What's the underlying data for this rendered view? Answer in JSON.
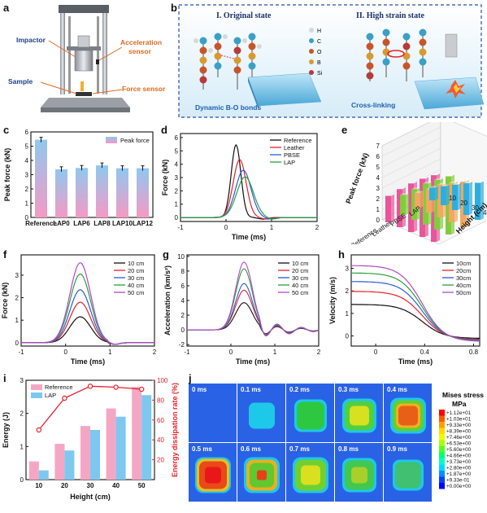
{
  "panels": {
    "a": "a",
    "b": "b",
    "c": "c",
    "d": "d",
    "e": "e",
    "f": "f",
    "g": "g",
    "h": "h",
    "i": "i",
    "j": "j"
  },
  "a": {
    "impactor": "Impactor",
    "accel": "Acceleration",
    "accel2": "sensor",
    "sample": "Sample",
    "force": "Force sensor"
  },
  "b": {
    "orig": "I. Original state",
    "high": "II. High strain state",
    "bonds": "Dynamic B-O bonds",
    "cross": "Cross-linking",
    "legend": [
      {
        "sym": "H",
        "color": "#d8d8d8"
      },
      {
        "sym": "C",
        "color": "#3aa0c8"
      },
      {
        "sym": "O",
        "color": "#c8552a"
      },
      {
        "sym": "B",
        "color": "#d89a30"
      },
      {
        "sym": "Si",
        "color": "#b83a3a"
      }
    ]
  },
  "c": {
    "ylabel": "Peak force (kN)",
    "legend": "Peak force"
  },
  "d": {
    "ylabel": "Force (kN)",
    "xlabel": "Time (ms)"
  },
  "e": {
    "zlabel": "Peak force (kN)",
    "height_label": "Height (cm)",
    "groups": [
      "Reference",
      "Leather",
      "PBSE",
      "LAP"
    ],
    "heights": [
      "10",
      "20",
      "30",
      "40",
      "50"
    ]
  },
  "f": {
    "ylabel": "Force (kN)",
    "xlabel": "Time (ms)"
  },
  "g": {
    "ylabel": "Acceleration (km/s²)",
    "xlabel": "Time (ms)"
  },
  "h": {
    "ylabel": "Velocity (m/s)",
    "xlabel": "Time (ms)"
  },
  "i": {
    "ylabel": "Energy (J)",
    "y2label": "Energy dissipation rate (%)",
    "xlabel": "Height (cm)"
  },
  "j": {
    "title1": "Mises stress",
    "title2": "MPa",
    "times": [
      "0 ms",
      "0.1 ms",
      "0.2 ms",
      "0.3 ms",
      "0.4 ms",
      "0.5 ms",
      "0.6 ms",
      "0.7 ms",
      "0.8 ms",
      "0.9 ms"
    ],
    "scale": [
      "+1.12e+01",
      "+1.03e+01",
      "+9.33e+00",
      "+8.39e+00",
      "+7.46e+00",
      "+6.53e+00",
      "+5.60e+00",
      "+4.66e+00",
      "+3.73e+00",
      "+2.80e+00",
      "+1.87e+00",
      "+9.33e-01",
      "+0.00e+00"
    ]
  },
  "chart_data": [
    {
      "panel": "c",
      "type": "bar",
      "categories": [
        "Reference",
        "LAP0",
        "LAP6",
        "LAP8",
        "LAP10",
        "LAP12"
      ],
      "values": [
        5.45,
        3.38,
        3.47,
        3.65,
        3.45,
        3.45
      ],
      "ylabel": "Peak force (kN)",
      "ylim": [
        0,
        6
      ],
      "yticks": [
        0,
        1,
        2,
        3,
        4,
        5,
        6
      ],
      "legend": [
        "Peak force"
      ]
    },
    {
      "panel": "d",
      "type": "line",
      "xlabel": "Time (ms)",
      "ylabel": "Force (kN)",
      "xlim": [
        -1,
        2
      ],
      "ylim": [
        -0.3,
        6.3
      ],
      "xticks": [
        -1,
        0,
        1,
        2
      ],
      "yticks": [
        0,
        1,
        2,
        3,
        4,
        5,
        6
      ],
      "series": [
        {
          "name": "Reference",
          "color": "#111111",
          "peak": 5.45,
          "tpeak": 0.22,
          "w": 0.15
        },
        {
          "name": "Leather",
          "color": "#e8202a",
          "peak": 4.35,
          "tpeak": 0.3,
          "w": 0.2
        },
        {
          "name": "PBSE",
          "color": "#2a5cd6",
          "peak": 3.55,
          "tpeak": 0.38,
          "w": 0.24
        },
        {
          "name": "LAP",
          "color": "#2aa040",
          "peak": 3.05,
          "tpeak": 0.42,
          "w": 0.26
        }
      ]
    },
    {
      "panel": "e",
      "type": "bar3d",
      "groups": [
        "Reference",
        "Leather",
        "PBSE",
        "LAP"
      ],
      "heights": [
        10,
        20,
        30,
        40,
        50
      ],
      "zlim": [
        0,
        7
      ],
      "zticks": [
        0,
        1,
        2,
        3,
        4,
        5,
        6,
        7
      ],
      "values": [
        [
          2.5,
          3.6,
          4.6,
          5.5,
          6.3
        ],
        [
          1.9,
          2.9,
          3.9,
          4.7,
          5.5
        ],
        [
          1.4,
          2.2,
          3.1,
          3.7,
          4.3
        ],
        [
          1.2,
          1.8,
          2.4,
          3.0,
          3.5
        ]
      ],
      "colors": [
        "#e8559a",
        "#82cc3c",
        "#f1a860",
        "#2eaee0"
      ]
    },
    {
      "panel": "f",
      "type": "line",
      "xlabel": "Time (ms)",
      "ylabel": "Force (kN)",
      "xlim": [
        -1,
        2
      ],
      "ylim": [
        -0.15,
        3.9
      ],
      "xticks": [
        -1,
        0,
        1,
        2
      ],
      "yticks": [
        0,
        1,
        2,
        3
      ],
      "series": [
        {
          "name": "10 cm",
          "color": "#111111",
          "peak": 1.15
        },
        {
          "name": "20 cm",
          "color": "#e8202a",
          "peak": 1.8
        },
        {
          "name": "30 cm",
          "color": "#2a5cd6",
          "peak": 2.35
        },
        {
          "name": "40 cm",
          "color": "#2aa040",
          "peak": 3.05
        },
        {
          "name": "50 cm",
          "color": "#b347c8",
          "peak": 3.55
        }
      ]
    },
    {
      "panel": "g",
      "type": "line",
      "xlabel": "Time (ms)",
      "ylabel": "Acceleration (km/s²)",
      "xlim": [
        -1,
        2
      ],
      "ylim": [
        -2.2,
        10.2
      ],
      "xticks": [
        -1,
        0,
        1,
        2
      ],
      "yticks": [
        -2,
        0,
        2,
        4,
        6,
        8,
        10
      ],
      "series": [
        {
          "name": "10 cm",
          "color": "#111111",
          "peak": 3.7
        },
        {
          "name": "20 cm",
          "color": "#e8202a",
          "peak": 5.4
        },
        {
          "name": "30 cm",
          "color": "#2a5cd6",
          "peak": 6.3
        },
        {
          "name": "40 cm",
          "color": "#2aa040",
          "peak": 8.3
        },
        {
          "name": "50 cm",
          "color": "#b347c8",
          "peak": 9.2
        }
      ]
    },
    {
      "panel": "h",
      "type": "line",
      "xlabel": "Time (ms)",
      "ylabel": "Velocity (m/s)",
      "xlim": [
        -0.2,
        0.85
      ],
      "ylim": [
        -0.45,
        3.6
      ],
      "xticks": [
        0.0,
        0.4,
        0.8
      ],
      "yticks": [
        0,
        1,
        2,
        3
      ],
      "series": [
        {
          "name": "10cm",
          "color": "#111111",
          "v0": 1.4
        },
        {
          "name": "20cm",
          "color": "#e8202a",
          "v0": 1.98
        },
        {
          "name": "30cm",
          "color": "#2a5cd6",
          "v0": 2.42
        },
        {
          "name": "40cm",
          "color": "#2aa040",
          "v0": 2.8
        },
        {
          "name": "50cm",
          "color": "#b347c8",
          "v0": 3.13
        }
      ]
    },
    {
      "panel": "i",
      "type": "bar",
      "categories": [
        "10",
        "20",
        "30",
        "40",
        "50"
      ],
      "xlabel": "Height (cm)",
      "ylabel": "Energy (J)",
      "y2label": "Energy dissipation rate (%)",
      "ylim": [
        0,
        3
      ],
      "y2lim": [
        0,
        100
      ],
      "yticks": [
        0,
        1,
        2,
        3
      ],
      "y2ticks": [
        20,
        40,
        60,
        80,
        100
      ],
      "series": [
        {
          "name": "Reference",
          "color": "#f4a7c4",
          "values": [
            0.55,
            1.08,
            1.62,
            2.15,
            2.8
          ]
        },
        {
          "name": "LAP",
          "color": "#7ec8f0",
          "values": [
            0.28,
            0.88,
            1.5,
            1.9,
            2.55
          ]
        }
      ],
      "line": {
        "color": "#e8202a",
        "values": [
          50,
          82,
          94,
          93,
          91
        ]
      }
    }
  ]
}
